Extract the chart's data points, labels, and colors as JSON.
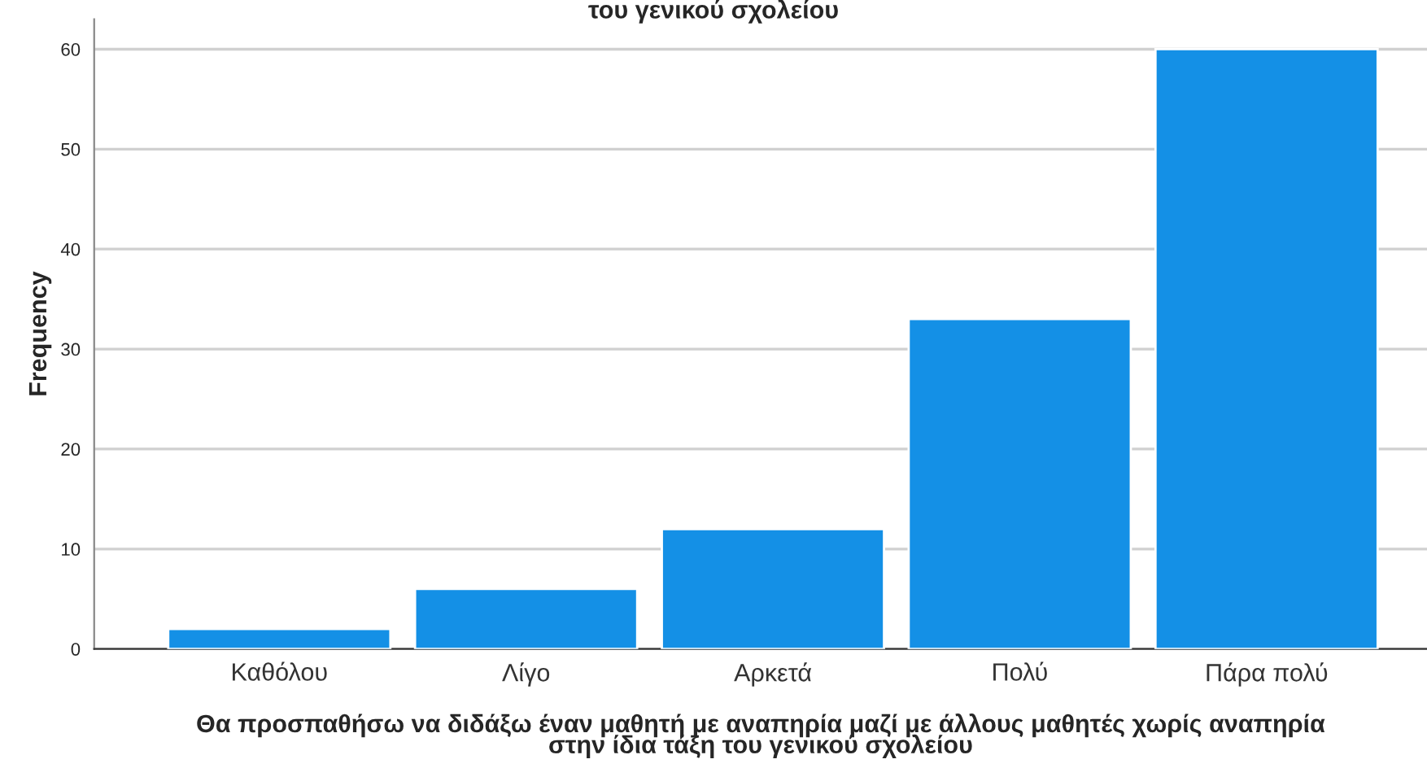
{
  "chart_data": {
    "type": "bar",
    "title": "του γενικού σχολείου",
    "categories": [
      "Καθόλου",
      "Λίγο",
      "Αρκετά",
      "Πολύ",
      "Πάρα πολύ"
    ],
    "values": [
      2,
      6,
      12,
      33,
      60
    ],
    "color": "#1490e6",
    "xlabel": "Θα προσπαθήσω να διδάξω έναν μαθητή με αναπηρία μαζί με άλλους μαθητές χωρίς αναπηρία\nστην ίδια τάξη του γενικού σχολείου",
    "ylabel": "Frequency",
    "ylim": [
      0,
      63
    ],
    "yticks": [
      0,
      10,
      20,
      30,
      40,
      50,
      60
    ],
    "grid": "y"
  }
}
